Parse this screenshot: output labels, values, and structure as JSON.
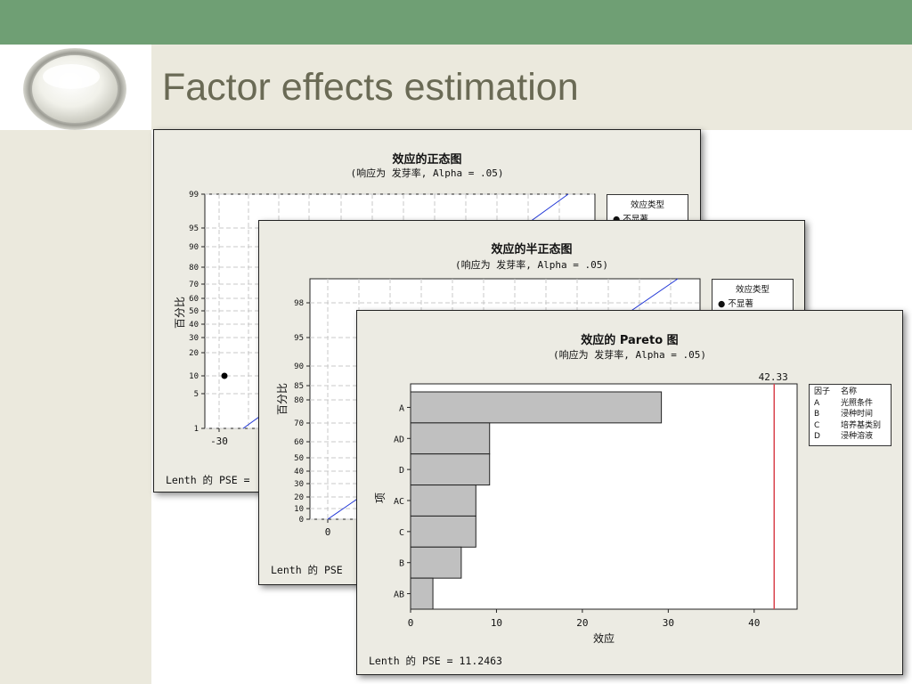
{
  "slide": {
    "title": "Factor effects estimation"
  },
  "colors": {
    "top_bar": "#6f9f74",
    "band": "#ebe9dd",
    "title_text": "#6a6a55",
    "reference_line": "#d9444f",
    "fit_line": "#1f35d6",
    "bar_fill": "#c0c0c0"
  },
  "normal_plot": {
    "title": "效应的正态图",
    "subtitle": "(响应为 发芽率, Alpha =  .05)",
    "ylabel": "百分比",
    "y_ticks": [
      "99",
      "95",
      "90",
      "80",
      "70",
      "60",
      "50",
      "40",
      "30",
      "20",
      "10",
      "5",
      "1"
    ],
    "x_ticks": [
      "-30"
    ],
    "legend_title": "效应类型",
    "legend_item": "不显著",
    "footer": "Lenth 的 PSE ="
  },
  "half_normal_plot": {
    "title": "效应的半正态图",
    "subtitle": "(响应为 发芽率, Alpha =  .05)",
    "ylabel": "百分比",
    "y_ticks": [
      "98",
      "95",
      "90",
      "85",
      "80",
      "70",
      "60",
      "50",
      "40",
      "30",
      "20",
      "10",
      "0"
    ],
    "x_ticks": [
      "0"
    ],
    "legend_title": "效应类型",
    "legend_item": "不显著",
    "footer": "Lenth 的 PSE"
  },
  "chart_data": [
    {
      "type": "bar",
      "orientation": "horizontal",
      "title": "效应的 Pareto 图",
      "subtitle": "(响应为 发芽率, Alpha =  .05)",
      "xlabel": "效应",
      "ylabel": "项",
      "categories": [
        "A",
        "AD",
        "D",
        "AC",
        "C",
        "B",
        "AB"
      ],
      "values": [
        29.2,
        9.2,
        9.2,
        7.6,
        7.6,
        5.9,
        2.6
      ],
      "xlim": [
        0,
        45
      ],
      "x_ticks": [
        "0",
        "10",
        "20",
        "30",
        "40"
      ],
      "reference_line": {
        "value": 42.33,
        "label": "42.33"
      },
      "legend": {
        "header": [
          "因子",
          "名称"
        ],
        "rows": [
          [
            "A",
            "光照条件"
          ],
          [
            "B",
            "浸种时间"
          ],
          [
            "C",
            "培养基类别"
          ],
          [
            "D",
            "浸种溶液"
          ]
        ]
      },
      "footer": "Lenth 的 PSE = 11.2463"
    }
  ]
}
